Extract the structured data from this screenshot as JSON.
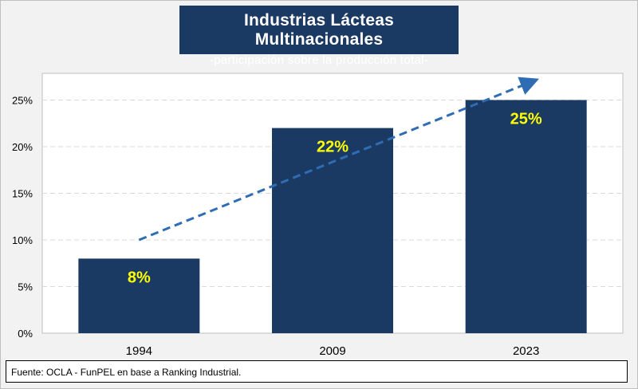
{
  "header": {
    "title": "Industrias Lácteas Multinacionales",
    "subtitle": "-participación sobre la producción total-"
  },
  "footer": {
    "source": "Fuente: OCLA - FunPEL en base a Ranking Industrial."
  },
  "colors": {
    "bar": "#1b3a63",
    "label": "#ffff00",
    "trend": "#2e6db4",
    "title_bg": "#1b3a63"
  },
  "chart_data": {
    "type": "bar",
    "categories": [
      "1994",
      "2009",
      "2023"
    ],
    "values": [
      8,
      22,
      25
    ],
    "value_labels": [
      "8%",
      "22%",
      "25%"
    ],
    "yticks": [
      0,
      5,
      10,
      15,
      20,
      25
    ],
    "ytick_labels": [
      "0%",
      "5%",
      "10%",
      "15%",
      "20%",
      "25%"
    ],
    "ylim": [
      0,
      28
    ],
    "grid": true,
    "trend": {
      "style": "dashed-arrow",
      "from_value": 10,
      "to_value": 27
    }
  }
}
